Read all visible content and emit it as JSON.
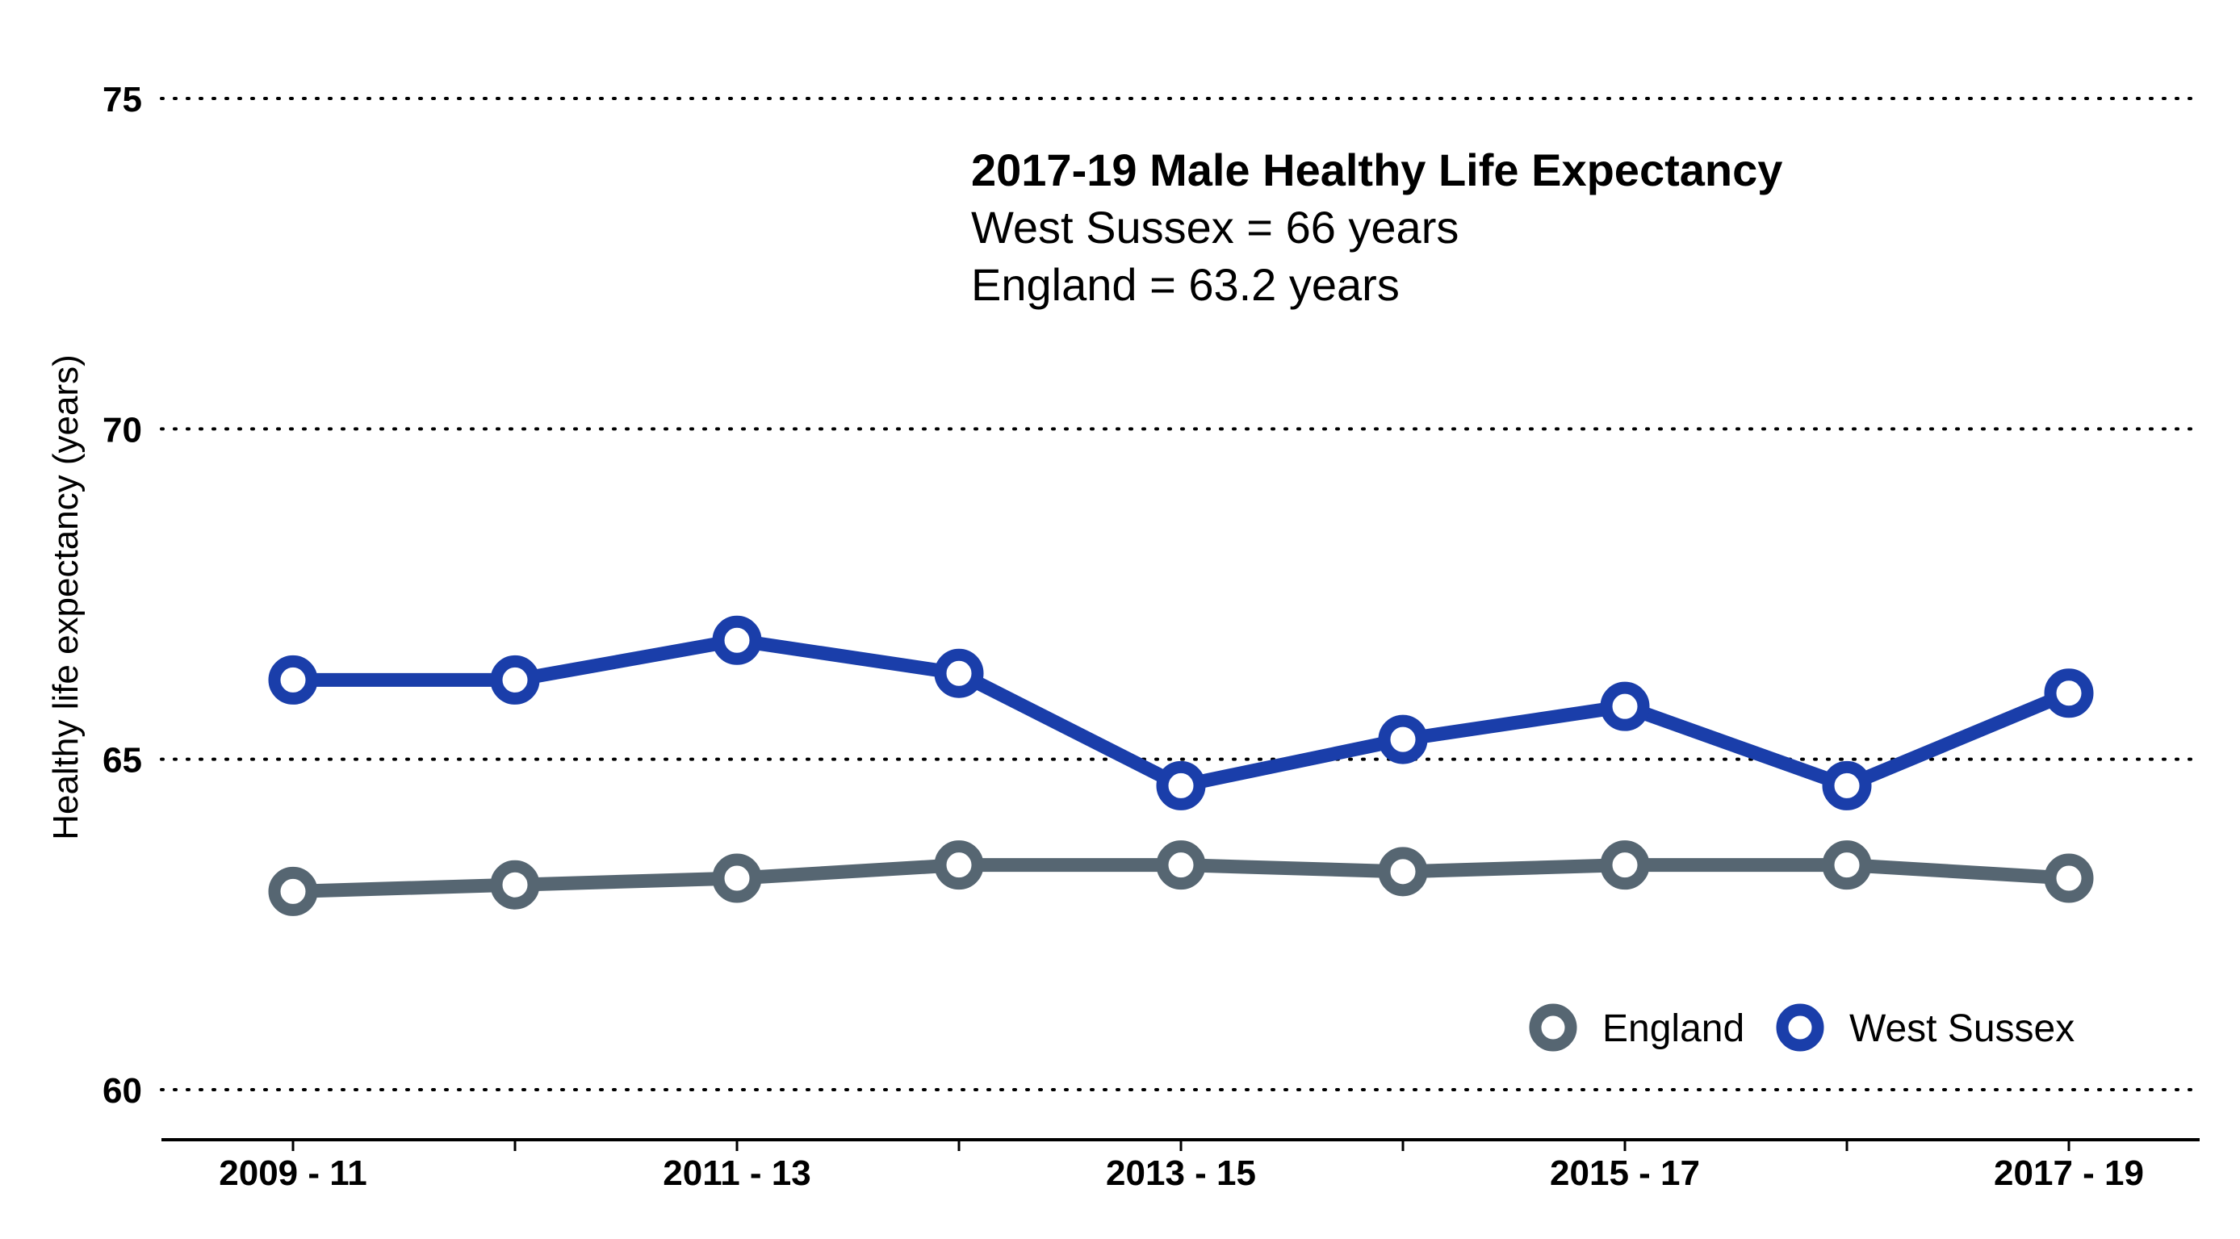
{
  "chart_data": {
    "type": "line",
    "ylabel": "Healthy life expectancy (years)",
    "xlabel": "",
    "ylim": [
      59.2,
      75.6
    ],
    "y_ticks": [
      60,
      65,
      70,
      75
    ],
    "grid": "horizontal dotted",
    "x": [
      "2009 - 11",
      "2010 - 12",
      "2011 - 13",
      "2012 - 14",
      "2013 - 15",
      "2014 - 16",
      "2015 - 17",
      "2016 - 18",
      "2017 - 19"
    ],
    "x_tick_labels": [
      "2009 - 11",
      "",
      "2011 - 13",
      "",
      "2013 - 15",
      "",
      "2015 - 17",
      "",
      "2017 - 19"
    ],
    "series": [
      {
        "name": "England",
        "color": "#566672",
        "values": [
          63.0,
          63.1,
          63.2,
          63.4,
          63.4,
          63.3,
          63.4,
          63.4,
          63.2
        ]
      },
      {
        "name": "West Sussex",
        "color": "#1a3eaa",
        "values": [
          66.2,
          66.2,
          66.8,
          66.3,
          64.6,
          65.3,
          65.8,
          64.6,
          66.0
        ]
      }
    ],
    "legend_position": "bottom-right",
    "annotation": {
      "title": "2017-19 Male Healthy Life Expectancy",
      "lines": [
        "West Sussex = 66 years",
        "England = 63.2 years"
      ]
    }
  }
}
